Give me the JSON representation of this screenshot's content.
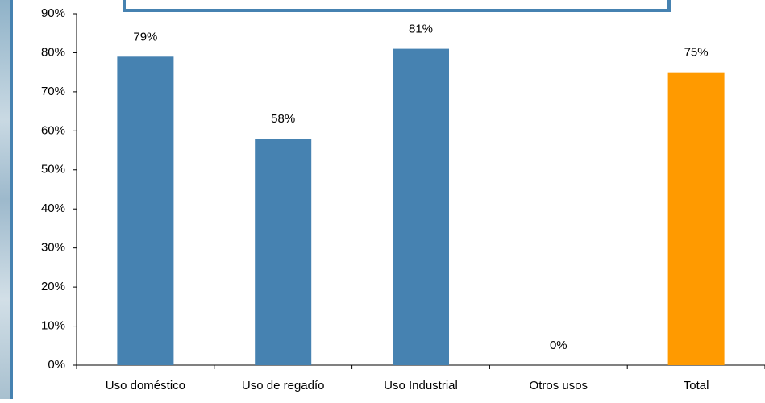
{
  "chart_data": {
    "type": "bar",
    "categories": [
      "Uso doméstico",
      "Uso de regadío",
      "Uso Industrial",
      "Otros usos",
      "Total"
    ],
    "values": [
      79,
      58,
      81,
      0,
      75
    ],
    "value_labels": [
      "79%",
      "58%",
      "81%",
      "0%",
      "75%"
    ],
    "colors": [
      "#4682b1",
      "#4682b1",
      "#4682b1",
      "#4682b1",
      "#ff9a00"
    ],
    "ylim": [
      0,
      90
    ],
    "yticks": [
      {
        "value": 0,
        "label": "0%"
      },
      {
        "value": 10,
        "label": "10%"
      },
      {
        "value": 20,
        "label": "20%"
      },
      {
        "value": 30,
        "label": "30%"
      },
      {
        "value": 40,
        "label": "40%"
      },
      {
        "value": 50,
        "label": "50%"
      },
      {
        "value": 60,
        "label": "60%"
      },
      {
        "value": 70,
        "label": "70%"
      },
      {
        "value": 80,
        "label": "80%"
      },
      {
        "value": 90,
        "label": "90%"
      }
    ]
  }
}
